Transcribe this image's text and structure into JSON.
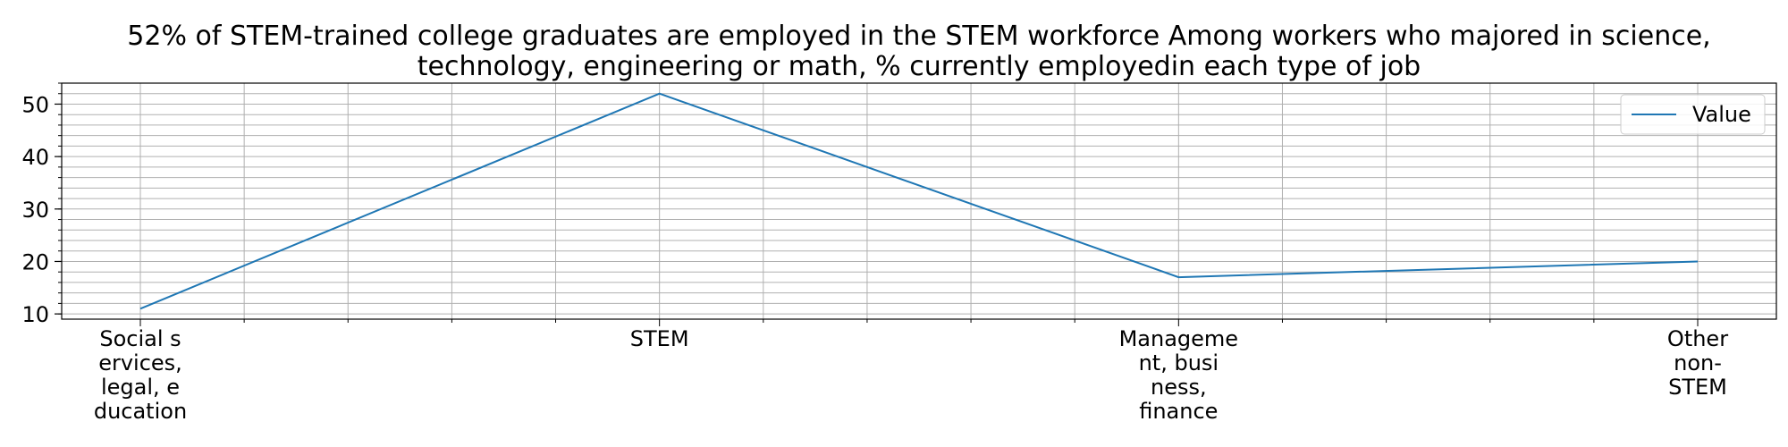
{
  "chart_data": {
    "type": "line",
    "title": "52% of STEM-trained college graduates are employed in the STEM workforce Among workers who majored in science,\ntechnology, engineering or math, % currently employedin each type of job",
    "categories": [
      "Social s\nervices,\nlegal, e\nducation",
      "STEM",
      "Manageme\nnt, busi\nness,\nfinance",
      "Other\nnon-\nSTEM"
    ],
    "series": [
      {
        "name": "Value",
        "values": [
          11,
          52,
          17,
          20
        ],
        "color": "#1f77b4"
      }
    ],
    "xlabel": "",
    "ylabel": "",
    "ylim": [
      9.0,
      54.0
    ],
    "yticks": [
      10,
      20,
      30,
      40,
      50
    ],
    "y_minor_step": 2,
    "x_minor_per_interval": 5,
    "grid": true,
    "grid_color": "#b0b0b0",
    "legend": "upper-right"
  }
}
